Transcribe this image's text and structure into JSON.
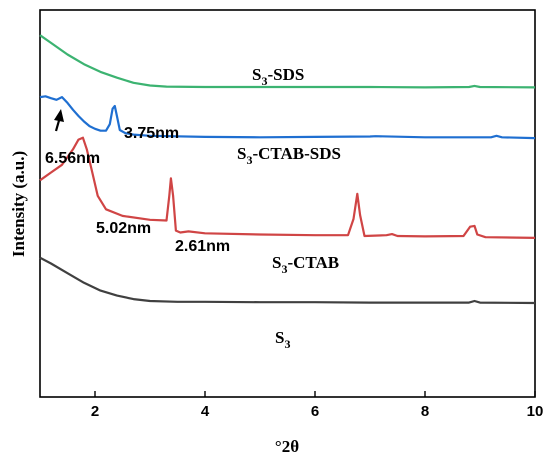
{
  "chart_data": {
    "type": "line",
    "xlabel": "°2θ",
    "ylabel": "Intensity (a.u.)",
    "xlim": [
      1,
      10
    ],
    "x_ticks": [
      2,
      4,
      6,
      8,
      10
    ],
    "y_ticks_shown": false,
    "grid": false,
    "series": [
      {
        "name": "S3-SDS",
        "name_base": "S",
        "name_sub": "3",
        "name_rest": "-SDS",
        "color": "#3cb371",
        "points": [
          [
            1.0,
            0.935
          ],
          [
            1.2,
            0.915
          ],
          [
            1.5,
            0.885
          ],
          [
            1.8,
            0.86
          ],
          [
            2.1,
            0.84
          ],
          [
            2.4,
            0.825
          ],
          [
            2.7,
            0.812
          ],
          [
            3.0,
            0.805
          ],
          [
            3.3,
            0.802
          ],
          [
            4,
            0.801
          ],
          [
            5,
            0.801
          ],
          [
            6,
            0.801
          ],
          [
            7,
            0.801
          ],
          [
            8,
            0.8
          ],
          [
            8.8,
            0.801
          ],
          [
            8.9,
            0.804
          ],
          [
            9.0,
            0.801
          ],
          [
            10.0,
            0.8
          ]
        ]
      },
      {
        "name": "S3-CTAB-SDS",
        "name_base": "S",
        "name_sub": "3",
        "name_rest": "-CTAB-SDS",
        "color": "#1f6fd1",
        "points": [
          [
            1.0,
            0.775
          ],
          [
            1.1,
            0.777
          ],
          [
            1.2,
            0.772
          ],
          [
            1.3,
            0.768
          ],
          [
            1.4,
            0.775
          ],
          [
            1.5,
            0.76
          ],
          [
            1.6,
            0.742
          ],
          [
            1.7,
            0.726
          ],
          [
            1.8,
            0.712
          ],
          [
            1.9,
            0.7
          ],
          [
            2.0,
            0.693
          ],
          [
            2.1,
            0.688
          ],
          [
            2.2,
            0.688
          ],
          [
            2.27,
            0.705
          ],
          [
            2.32,
            0.745
          ],
          [
            2.36,
            0.752
          ],
          [
            2.4,
            0.725
          ],
          [
            2.45,
            0.69
          ],
          [
            2.55,
            0.682
          ],
          [
            2.7,
            0.678
          ],
          [
            3.0,
            0.675
          ],
          [
            4.0,
            0.672
          ],
          [
            5.0,
            0.671
          ],
          [
            6.0,
            0.672
          ],
          [
            7.0,
            0.673
          ],
          [
            7.1,
            0.674
          ],
          [
            8.0,
            0.671
          ],
          [
            9.2,
            0.671
          ],
          [
            9.3,
            0.675
          ],
          [
            9.4,
            0.671
          ],
          [
            10.0,
            0.669
          ]
        ]
      },
      {
        "name": "S3-CTAB",
        "name_base": "S",
        "name_sub": "3",
        "name_rest": "-CTAB",
        "color": "#d04545",
        "points": [
          [
            1.0,
            0.56
          ],
          [
            1.2,
            0.58
          ],
          [
            1.4,
            0.6
          ],
          [
            1.6,
            0.64
          ],
          [
            1.7,
            0.665
          ],
          [
            1.78,
            0.67
          ],
          [
            1.85,
            0.64
          ],
          [
            1.95,
            0.58
          ],
          [
            2.05,
            0.52
          ],
          [
            2.2,
            0.485
          ],
          [
            2.5,
            0.468
          ],
          [
            3.0,
            0.458
          ],
          [
            3.3,
            0.456
          ],
          [
            3.35,
            0.52
          ],
          [
            3.38,
            0.565
          ],
          [
            3.42,
            0.52
          ],
          [
            3.47,
            0.43
          ],
          [
            3.55,
            0.425
          ],
          [
            3.7,
            0.428
          ],
          [
            4.0,
            0.423
          ],
          [
            5.0,
            0.42
          ],
          [
            6.0,
            0.418
          ],
          [
            6.6,
            0.418
          ],
          [
            6.7,
            0.46
          ],
          [
            6.77,
            0.525
          ],
          [
            6.82,
            0.47
          ],
          [
            6.9,
            0.416
          ],
          [
            7.3,
            0.418
          ],
          [
            7.4,
            0.421
          ],
          [
            7.5,
            0.416
          ],
          [
            8.0,
            0.415
          ],
          [
            8.7,
            0.416
          ],
          [
            8.82,
            0.44
          ],
          [
            8.9,
            0.442
          ],
          [
            8.95,
            0.42
          ],
          [
            9.1,
            0.413
          ],
          [
            10.0,
            0.411
          ]
        ]
      },
      {
        "name": "S3",
        "name_base": "S",
        "name_sub": "3",
        "name_rest": "",
        "color": "#404040",
        "points": [
          [
            1.0,
            0.36
          ],
          [
            1.2,
            0.345
          ],
          [
            1.5,
            0.32
          ],
          [
            1.8,
            0.295
          ],
          [
            2.1,
            0.275
          ],
          [
            2.4,
            0.262
          ],
          [
            2.7,
            0.253
          ],
          [
            3.0,
            0.248
          ],
          [
            3.5,
            0.246
          ],
          [
            4,
            0.246
          ],
          [
            5,
            0.245
          ],
          [
            6,
            0.245
          ],
          [
            7,
            0.244
          ],
          [
            8,
            0.244
          ],
          [
            8.8,
            0.244
          ],
          [
            8.9,
            0.248
          ],
          [
            9.0,
            0.244
          ],
          [
            10.0,
            0.243
          ]
        ]
      }
    ],
    "annotations": [
      {
        "text": "6.56nm"
      },
      {
        "text": "3.75nm"
      },
      {
        "text": "5.02nm"
      },
      {
        "text": "2.61nm"
      }
    ]
  }
}
